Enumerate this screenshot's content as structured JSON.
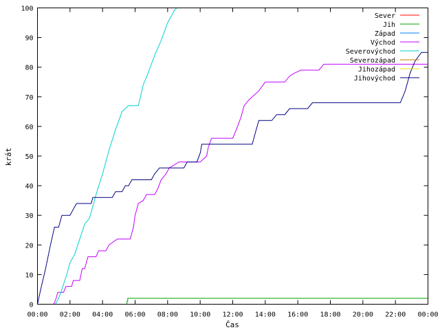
{
  "chart_data": {
    "type": "line",
    "xlabel": "Čas",
    "ylabel": "krát",
    "xlim": [
      0,
      24
    ],
    "ylim": [
      0,
      100
    ],
    "x_ticks": [
      {
        "value": 0,
        "label": "00:00"
      },
      {
        "value": 2,
        "label": "02:00"
      },
      {
        "value": 4,
        "label": "04:00"
      },
      {
        "value": 6,
        "label": "06:00"
      },
      {
        "value": 8,
        "label": "08:00"
      },
      {
        "value": 10,
        "label": "10:00"
      },
      {
        "value": 12,
        "label": "12:00"
      },
      {
        "value": 14,
        "label": "14:00"
      },
      {
        "value": 16,
        "label": "16:00"
      },
      {
        "value": 18,
        "label": "18:00"
      },
      {
        "value": 20,
        "label": "20:00"
      },
      {
        "value": 22,
        "label": "22:00"
      },
      {
        "value": 24,
        "label": "00:00"
      }
    ],
    "y_ticks": [
      0,
      10,
      20,
      30,
      40,
      50,
      60,
      70,
      80,
      90,
      100
    ],
    "grid": false,
    "legend_position": "top-right",
    "series": [
      {
        "name": "Sever",
        "color": "#ff0000",
        "points": []
      },
      {
        "name": "Jih",
        "color": "#00a000",
        "points": [
          [
            0,
            0
          ],
          [
            5.5,
            0
          ],
          [
            5.5,
            1
          ],
          [
            5.55,
            1
          ],
          [
            5.55,
            2
          ],
          [
            24,
            2
          ]
        ]
      },
      {
        "name": "Západ",
        "color": "#0080ff",
        "points": []
      },
      {
        "name": "Východ",
        "color": "#c000ff",
        "points": [
          [
            0,
            0
          ],
          [
            1.0,
            0
          ],
          [
            1.15,
            2
          ],
          [
            1.25,
            4
          ],
          [
            1.6,
            4
          ],
          [
            1.75,
            6
          ],
          [
            2.1,
            6
          ],
          [
            2.2,
            8
          ],
          [
            2.6,
            8
          ],
          [
            2.75,
            12
          ],
          [
            2.9,
            12
          ],
          [
            3.1,
            16
          ],
          [
            3.6,
            16
          ],
          [
            3.75,
            18
          ],
          [
            4.2,
            18
          ],
          [
            4.4,
            20
          ],
          [
            4.9,
            22
          ],
          [
            5.7,
            22
          ],
          [
            5.9,
            26
          ],
          [
            6.0,
            30
          ],
          [
            6.2,
            34
          ],
          [
            6.5,
            35
          ],
          [
            6.7,
            37
          ],
          [
            7.2,
            37
          ],
          [
            7.4,
            39
          ],
          [
            7.6,
            42
          ],
          [
            7.9,
            44
          ],
          [
            8.1,
            46
          ],
          [
            8.4,
            47
          ],
          [
            8.7,
            48
          ],
          [
            10.0,
            48
          ],
          [
            10.4,
            50
          ],
          [
            10.5,
            53
          ],
          [
            10.7,
            56
          ],
          [
            12.0,
            56
          ],
          [
            12.3,
            60
          ],
          [
            12.5,
            63
          ],
          [
            12.7,
            67
          ],
          [
            13.0,
            69
          ],
          [
            13.6,
            72
          ],
          [
            14.0,
            75
          ],
          [
            15.2,
            75
          ],
          [
            15.5,
            77
          ],
          [
            15.8,
            78
          ],
          [
            16.2,
            79
          ],
          [
            17.3,
            79
          ],
          [
            17.6,
            81
          ],
          [
            24,
            81
          ]
        ]
      },
      {
        "name": "Severovýchod",
        "color": "#00d0d0",
        "points": [
          [
            0,
            0
          ],
          [
            1.1,
            0
          ],
          [
            1.3,
            2
          ],
          [
            1.5,
            5
          ],
          [
            1.8,
            10
          ],
          [
            2.0,
            14
          ],
          [
            2.3,
            17
          ],
          [
            2.6,
            22
          ],
          [
            2.9,
            27
          ],
          [
            3.2,
            29
          ],
          [
            3.6,
            37
          ],
          [
            4.0,
            44
          ],
          [
            4.4,
            52
          ],
          [
            4.8,
            59
          ],
          [
            5.2,
            65
          ],
          [
            5.6,
            67
          ],
          [
            6.2,
            67
          ],
          [
            6.5,
            74
          ],
          [
            6.8,
            78
          ],
          [
            7.2,
            84
          ],
          [
            7.6,
            89
          ],
          [
            8.0,
            95
          ],
          [
            8.4,
            99
          ],
          [
            8.55,
            100
          ]
        ]
      },
      {
        "name": "Severozápad",
        "color": "#c07800",
        "points": []
      },
      {
        "name": "Jihozápad",
        "color": "#e0e000",
        "points": []
      },
      {
        "name": "Jihovýchod",
        "color": "#000080",
        "points": [
          [
            0,
            0
          ],
          [
            0.2,
            5
          ],
          [
            0.5,
            12
          ],
          [
            0.8,
            20
          ],
          [
            1.05,
            26
          ],
          [
            1.3,
            26
          ],
          [
            1.5,
            30
          ],
          [
            2.0,
            30
          ],
          [
            2.3,
            33
          ],
          [
            2.4,
            34
          ],
          [
            3.3,
            34
          ],
          [
            3.4,
            36
          ],
          [
            4.6,
            36
          ],
          [
            4.8,
            38
          ],
          [
            5.2,
            38
          ],
          [
            5.4,
            40
          ],
          [
            5.6,
            40
          ],
          [
            5.8,
            42
          ],
          [
            7.0,
            42
          ],
          [
            7.2,
            44
          ],
          [
            7.5,
            46
          ],
          [
            9.0,
            46
          ],
          [
            9.2,
            48
          ],
          [
            9.8,
            48
          ],
          [
            10.0,
            51
          ],
          [
            10.1,
            54
          ],
          [
            13.2,
            54
          ],
          [
            13.4,
            58
          ],
          [
            13.6,
            62
          ],
          [
            14.4,
            62
          ],
          [
            14.7,
            64
          ],
          [
            15.2,
            64
          ],
          [
            15.5,
            66
          ],
          [
            16.6,
            66
          ],
          [
            16.9,
            68
          ],
          [
            22.3,
            68
          ],
          [
            22.6,
            72
          ],
          [
            22.9,
            78
          ],
          [
            23.2,
            82
          ],
          [
            23.6,
            85
          ],
          [
            24,
            85
          ]
        ]
      }
    ]
  }
}
